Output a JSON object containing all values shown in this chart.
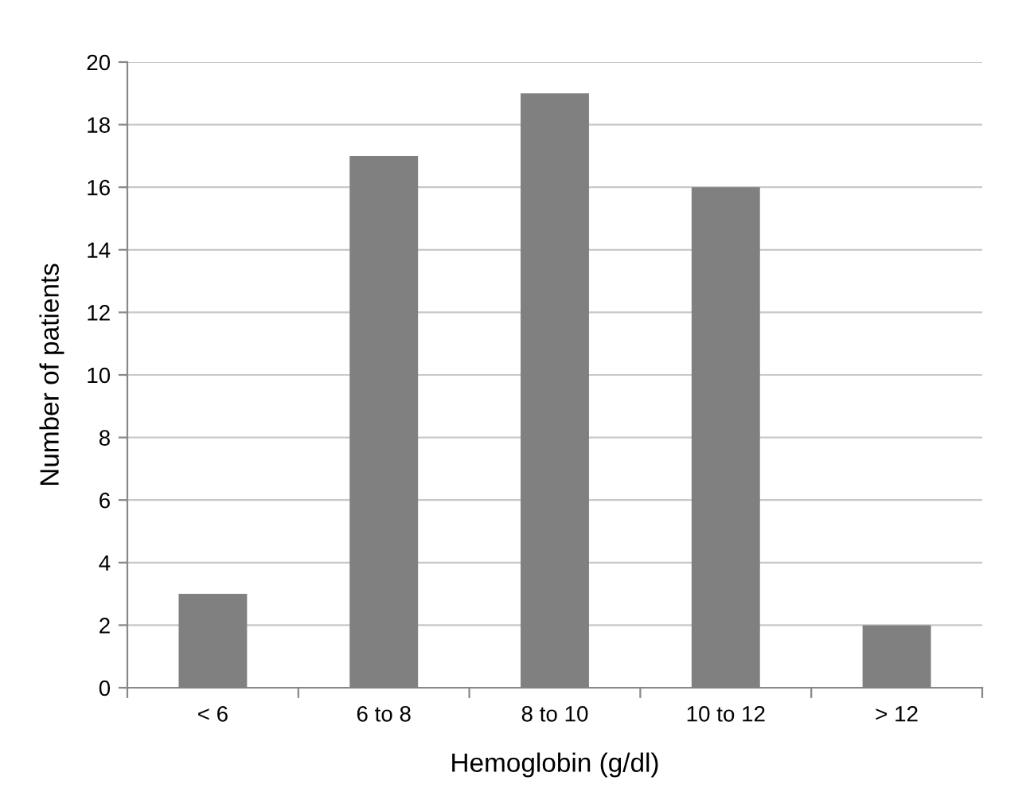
{
  "chart_data": {
    "type": "bar",
    "xlabel": "Hemoglobin (g/dl)",
    "ylabel": "Number of patients",
    "categories": [
      "< 6",
      "6 to 8",
      "8 to 10",
      "10 to 12",
      "> 12"
    ],
    "values": [
      3,
      17,
      19,
      16,
      2
    ],
    "color": "#808080",
    "ylim": [
      0,
      20
    ],
    "yticks": [
      0,
      2,
      4,
      6,
      8,
      10,
      12,
      14,
      16,
      18,
      20
    ],
    "grid": "y",
    "legend": false
  }
}
